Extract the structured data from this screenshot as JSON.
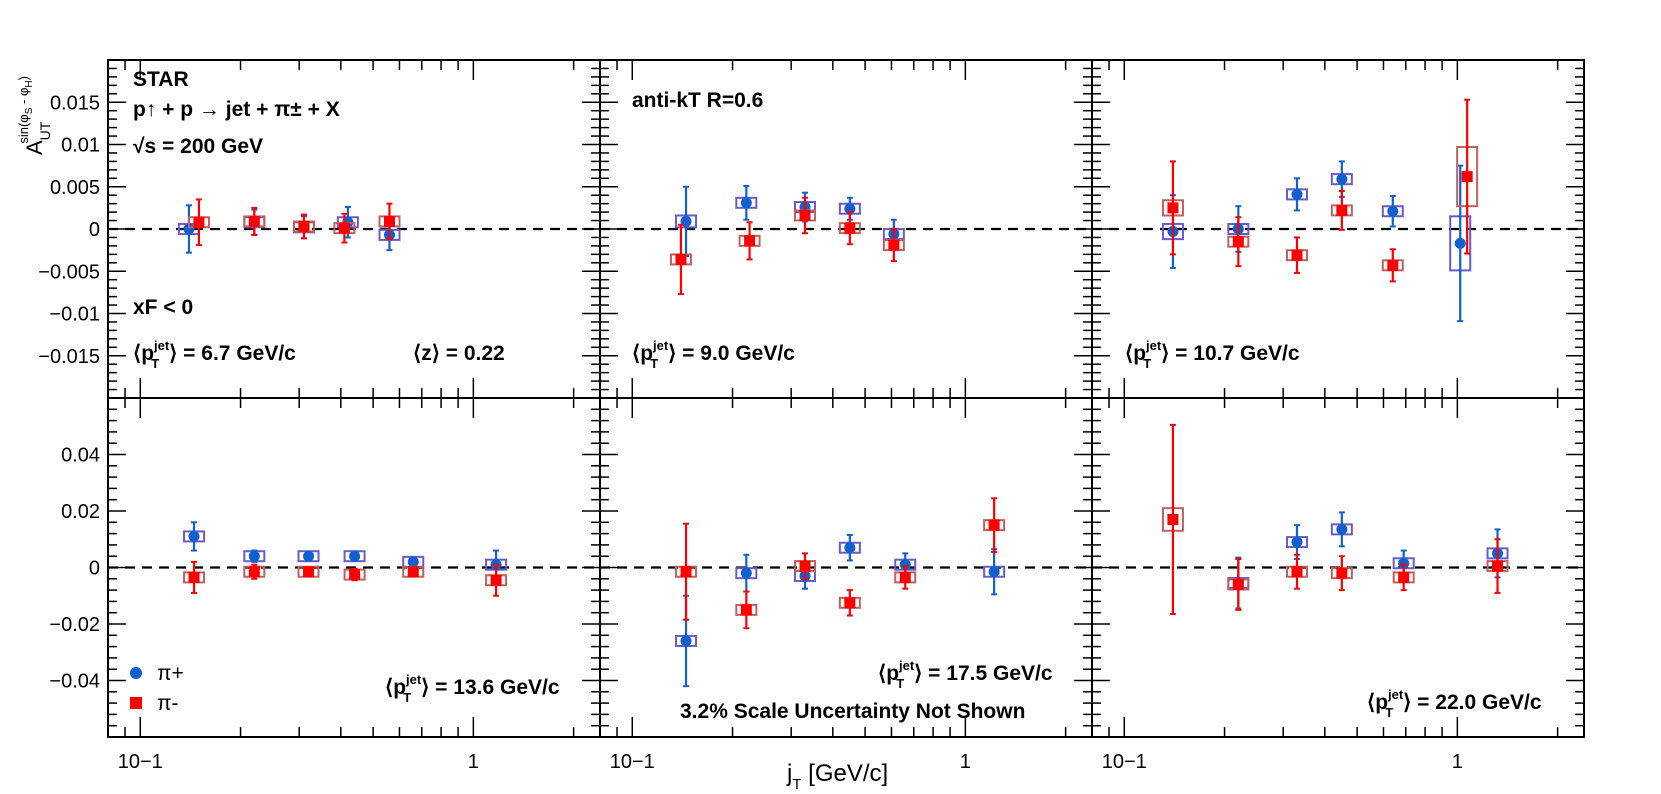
{
  "chart_data": {
    "type": "scatter",
    "experiment": "STAR",
    "reaction": "p↑ + p → jet + π± + X",
    "energy": "√s = 200 GeV",
    "jet_algorithm": "anti-kT R=0.6",
    "xf_cut": "xF < 0",
    "mean_z": "⟨z⟩ = 0.22",
    "ylabel": "A_UT^{sin(φS - φH)}",
    "xlabel": "jT [GeV/c]",
    "xscale": "log",
    "xlim": [
      0.08,
      2.4
    ],
    "scale_note": "3.2% Scale Uncertainty Not Shown",
    "colors": {
      "pi_plus": "#1060d0",
      "pi_minus": "#ff0000",
      "sys_plus": "#6a5acd",
      "sys_minus": "#c06060"
    },
    "legend": [
      "π+",
      "π-"
    ],
    "rows": [
      {
        "ylim": [
          -0.02,
          0.02
        ],
        "ticks": [
          -0.015,
          -0.01,
          -0.005,
          0,
          0.005,
          0.01,
          0.015
        ],
        "tick_labels": [
          "−0.015",
          "−0.01",
          "−0.005",
          "0",
          "0.005",
          "0.01",
          "0.015"
        ]
      },
      {
        "ylim": [
          -0.06,
          0.06
        ],
        "ticks": [
          -0.04,
          -0.02,
          0,
          0.02,
          0.04
        ],
        "tick_labels": [
          "−0.04",
          "−0.02",
          "0",
          "0.02",
          "0.04"
        ]
      }
    ],
    "x_tick_labels": [
      "10−1",
      "1"
    ],
    "panels": [
      {
        "pt_label": "6.7 GeV/c",
        "series": [
          {
            "name": "π+",
            "x": [
              0.14,
              0.22,
              0.31,
              0.42,
              0.56
            ],
            "y": [
              0.0,
              0.0008,
              0.0002,
              0.0008,
              -0.0007
            ],
            "err": [
              0.0028,
              0.0015,
              0.0013,
              0.0018,
              0.0018
            ],
            "sys": [
              0.0006,
              0.0004,
              0.0003,
              0.0004,
              0.0005
            ]
          },
          {
            "name": "π-",
            "x": [
              0.15,
              0.22,
              0.31,
              0.41,
              0.56
            ],
            "y": [
              0.0008,
              0.0009,
              0.0003,
              0.0001,
              0.0009
            ],
            "err": [
              0.0027,
              0.0016,
              0.0014,
              0.0017,
              0.0021
            ],
            "sys": [
              0.0005,
              0.0004,
              0.0003,
              0.0004,
              0.0005
            ]
          }
        ]
      },
      {
        "pt_label": "9.0 GeV/c",
        "series": [
          {
            "name": "π+",
            "x": [
              0.145,
              0.22,
              0.33,
              0.45,
              0.61
            ],
            "y": [
              0.0009,
              0.0031,
              0.0026,
              0.0024,
              -0.0006
            ],
            "err": [
              0.0041,
              0.002,
              0.0017,
              0.0013,
              0.0017
            ],
            "sys": [
              0.0007,
              0.0004,
              0.0004,
              0.0004,
              0.0004
            ]
          },
          {
            "name": "π-",
            "x": [
              0.14,
              0.225,
              0.33,
              0.45,
              0.61
            ],
            "y": [
              -0.0036,
              -0.0014,
              0.0016,
              0.0001,
              -0.0019
            ],
            "err": [
              0.0041,
              0.0022,
              0.0021,
              0.0019,
              0.0019
            ],
            "sys": [
              0.0005,
              0.0004,
              0.0004,
              0.0004,
              0.0004
            ]
          }
        ]
      },
      {
        "pt_label": "10.7 GeV/c",
        "series": [
          {
            "name": "π+",
            "x": [
              0.14,
              0.22,
              0.33,
              0.45,
              0.64,
              1.02
            ],
            "y": [
              -0.0003,
              0.0,
              0.0041,
              0.0059,
              0.0021,
              -0.0017
            ],
            "err": [
              0.0043,
              0.0027,
              0.0019,
              0.0021,
              0.0018,
              0.0092
            ],
            "sys": [
              0.0009,
              0.0005,
              0.0006,
              0.0006,
              0.0005,
              0.0032
            ]
          },
          {
            "name": "π-",
            "x": [
              0.14,
              0.22,
              0.33,
              0.45,
              0.64,
              1.07
            ],
            "y": [
              0.0025,
              -0.0015,
              -0.0031,
              0.0022,
              -0.0043,
              0.0062
            ],
            "err": [
              0.0055,
              0.0029,
              0.0021,
              0.0023,
              0.0019,
              0.0091
            ],
            "sys": [
              0.0009,
              0.0005,
              0.0004,
              0.0004,
              0.0004,
              0.0035
            ]
          }
        ]
      },
      {
        "pt_label": "13.6 GeV/c",
        "series": [
          {
            "name": "π+",
            "x": [
              0.145,
              0.22,
              0.32,
              0.44,
              0.66,
              1.17
            ],
            "y": [
              0.011,
              0.004,
              0.004,
              0.004,
              0.002,
              0.001
            ],
            "err": [
              0.005,
              0.002,
              0.0015,
              0.0015,
              0.0015,
              0.005
            ],
            "sys": [
              0.0008,
              0.0006,
              0.0004,
              0.0004,
              0.0004,
              0.0008
            ]
          },
          {
            "name": "π-",
            "x": [
              0.145,
              0.22,
              0.32,
              0.44,
              0.66,
              1.17
            ],
            "y": [
              -0.0035,
              -0.0015,
              -0.0015,
              -0.0025,
              -0.0015,
              -0.0045
            ],
            "err": [
              0.0055,
              0.0025,
              0.0015,
              0.002,
              0.0015,
              0.0055
            ],
            "sys": [
              0.0012,
              0.0008,
              0.0005,
              0.0005,
              0.0005,
              0.0008
            ]
          }
        ]
      },
      {
        "pt_label": "17.5 GeV/c",
        "series": [
          {
            "name": "π+",
            "x": [
              0.145,
              0.22,
              0.33,
              0.45,
              0.66,
              1.22
            ],
            "y": [
              -0.026,
              -0.002,
              -0.003,
              0.007,
              0.001,
              -0.0015
            ],
            "err": [
              0.016,
              0.0065,
              0.0045,
              0.0045,
              0.004,
              0.008
            ],
            "sys": [
              0.001,
              0.0006,
              0.0005,
              0.0005,
              0.0005,
              0.001
            ]
          },
          {
            "name": "π-",
            "x": [
              0.145,
              0.22,
              0.33,
              0.45,
              0.66,
              1.22
            ],
            "y": [
              -0.0015,
              -0.015,
              0.0005,
              -0.0125,
              -0.0035,
              0.015
            ],
            "err": [
              0.017,
              0.0065,
              0.0045,
              0.0045,
              0.004,
              0.0095
            ],
            "sys": [
              0.0012,
              0.0009,
              0.0005,
              0.0005,
              0.0005,
              0.001
            ]
          }
        ]
      },
      {
        "pt_label": "22.0 GeV/c",
        "series": [
          {
            "name": "π+",
            "x": [
              0.22,
              0.33,
              0.45,
              0.69,
              1.32
            ],
            "y": [
              -0.0055,
              0.009,
              0.0135,
              0.0015,
              0.005
            ],
            "err": [
              0.009,
              0.006,
              0.006,
              0.0045,
              0.0085
            ],
            "sys": [
              0.0008,
              0.0006,
              0.0006,
              0.0006,
              0.0008
            ]
          },
          {
            "name": "π-",
            "x": [
              0.14,
              0.22,
              0.33,
              0.45,
              0.69,
              1.32
            ],
            "y": [
              0.017,
              -0.006,
              -0.0015,
              -0.002,
              -0.0035,
              0.0005
            ],
            "err": [
              0.0335,
              0.009,
              0.006,
              0.006,
              0.0045,
              0.0095
            ],
            "sys": [
              0.004,
              0.0008,
              0.0006,
              0.0006,
              0.0006,
              0.0008
            ]
          }
        ]
      }
    ]
  }
}
